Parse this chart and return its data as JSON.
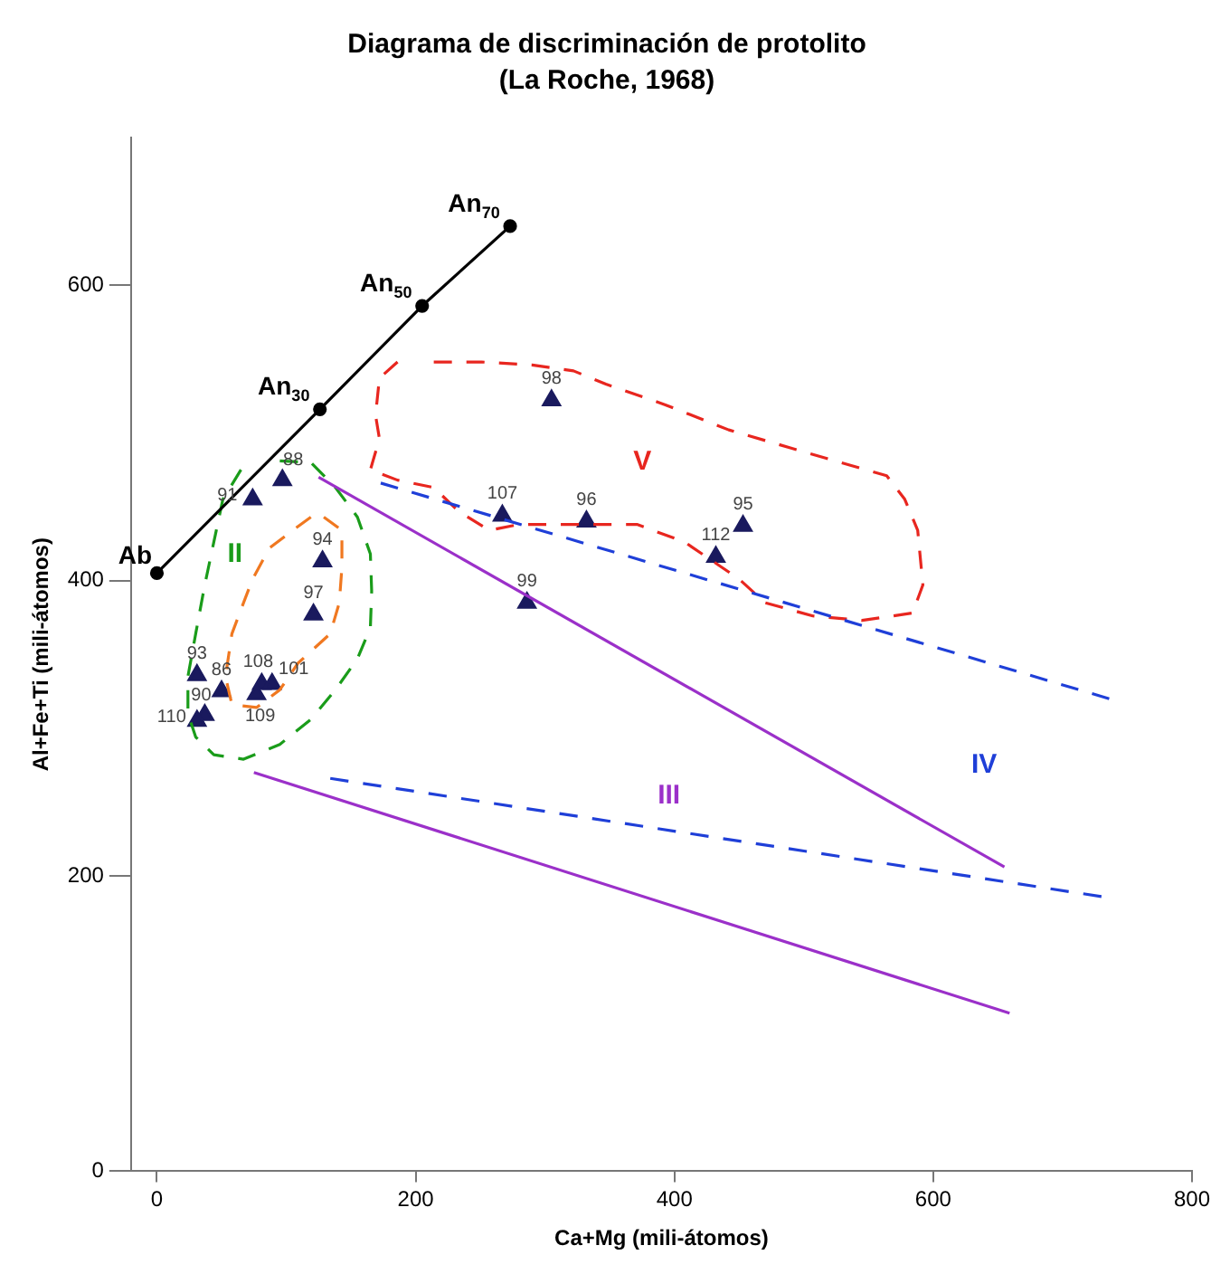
{
  "chart_data": {
    "type": "scatter",
    "title": "Diagrama de discriminación de protolito",
    "subtitle": "(La Roche, 1968)",
    "xlabel": "Ca+Mg (mili-átomos)",
    "ylabel": "Al+Fe+Ti (mili-átomos)",
    "xlim": [
      -20,
      800
    ],
    "ylim": [
      0,
      700
    ],
    "xticks": [
      0,
      200,
      400,
      600,
      800
    ],
    "yticks": [
      0,
      200,
      400,
      600
    ],
    "grid": false,
    "legend": false,
    "series": [
      {
        "type": "line",
        "color": "#000000",
        "marker": "circle",
        "line_style": "solid",
        "x": [
          0,
          126,
          205,
          273
        ],
        "values": [
          405,
          516,
          586,
          640
        ]
      },
      {
        "type": "line",
        "color": "#9b30c9",
        "marker": "none",
        "line_style": "solid",
        "x": [
          125,
          655
        ],
        "values": [
          470,
          206
        ]
      },
      {
        "type": "line",
        "color": "#9b30c9",
        "marker": "none",
        "line_style": "solid",
        "x": [
          75,
          659
        ],
        "values": [
          270,
          107
        ]
      },
      {
        "type": "line",
        "color": "#1f3fd8",
        "marker": "none",
        "line_style": "dashed",
        "x": [
          173,
          736
        ],
        "values": [
          466,
          320
        ]
      },
      {
        "type": "line",
        "color": "#1f3fd8",
        "marker": "none",
        "line_style": "dashed",
        "x": [
          134,
          730
        ],
        "values": [
          266,
          186
        ]
      },
      {
        "type": "line",
        "color": "#e8261f",
        "marker": "none",
        "line_style": "dashed",
        "x": [
          214,
          251,
          290,
          322,
          347,
          393,
          442,
          489,
          536,
          564,
          578,
          588,
          592,
          584,
          545,
          507,
          470,
          450,
          408,
          371,
          332,
          280,
          257,
          233,
          214,
          186,
          165,
          172,
          169,
          172,
          186
        ],
        "values": [
          548,
          548,
          546,
          542,
          533,
          519,
          502,
          490,
          478,
          471,
          455,
          434,
          397,
          378,
          373,
          376,
          385,
          401,
          426,
          438,
          438,
          438,
          434,
          447,
          463,
          468,
          475,
          496,
          512,
          537,
          548
        ]
      },
      {
        "type": "line",
        "color": "#1a9c1a",
        "marker": "none",
        "line_style": "dashed",
        "x": [
          95,
          119,
          138,
          155,
          165,
          166,
          165,
          155,
          138,
          119,
          95,
          67,
          44,
          30,
          24,
          24,
          30,
          37,
          44,
          51,
          65
        ],
        "values": [
          481,
          480,
          463,
          443,
          418,
          393,
          368,
          347,
          326,
          306,
          289,
          279,
          282,
          294,
          310,
          335,
          364,
          397,
          426,
          455,
          475
        ]
      },
      {
        "type": "line",
        "color": "#f07820",
        "marker": "none",
        "line_style": "dashed",
        "x": [
          129,
          143,
          143,
          141,
          134,
          109,
          95,
          77,
          58,
          53,
          58,
          67,
          74,
          87,
          105,
          119
        ],
        "values": [
          443,
          434,
          409,
          385,
          364,
          344,
          326,
          314,
          316,
          335,
          364,
          385,
          401,
          422,
          434,
          443
        ]
      },
      {
        "type": "scatter",
        "color": "#1a1a5e",
        "marker": "triangle",
        "x": [
          305,
          267,
          332,
          453,
          432,
          286,
          97,
          74,
          128,
          121,
          31,
          50,
          81,
          77,
          89,
          37,
          31
        ],
        "values": [
          522,
          444,
          440,
          437,
          416,
          385,
          468,
          455,
          413,
          377,
          336,
          325,
          330,
          323,
          330,
          309,
          305
        ]
      }
    ],
    "annotations": [
      "II",
      "V",
      "III",
      "IV",
      {
        "text": "Ab",
        "x": 0,
        "y": 405
      },
      {
        "text": "An$_{30}$",
        "x": 126,
        "y": 516
      },
      {
        "text": "An$_{50}$",
        "x": 205,
        "y": 586
      },
      {
        "text": "An$_{70}$",
        "x": 273,
        "y": 640
      },
      {
        "text": "98",
        "x": 305,
        "y": 522
      },
      {
        "text": "107",
        "x": 267,
        "y": 444
      },
      {
        "text": "96",
        "x": 332,
        "y": 440
      },
      {
        "text": "95",
        "x": 453,
        "y": 437
      },
      {
        "text": "112",
        "x": 432,
        "y": 416
      },
      {
        "text": "99",
        "x": 286,
        "y": 385
      },
      {
        "text": "88",
        "x": 97,
        "y": 468
      },
      {
        "text": "91",
        "x": 74,
        "y": 455
      },
      {
        "text": "94",
        "x": 128,
        "y": 413
      },
      {
        "text": "97",
        "x": 121,
        "y": 377
      },
      {
        "text": "93",
        "x": 31,
        "y": 336
      },
      {
        "text": "86",
        "x": 50,
        "y": 325
      },
      {
        "text": "108",
        "x": 81,
        "y": 330
      },
      {
        "text": "109",
        "x": 77,
        "y": 323
      },
      {
        "text": "101",
        "x": 89,
        "y": 330
      },
      {
        "text": "90",
        "x": 37,
        "y": 309
      },
      {
        "text": "110",
        "x": 31,
        "y": 305
      }
    ]
  }
}
